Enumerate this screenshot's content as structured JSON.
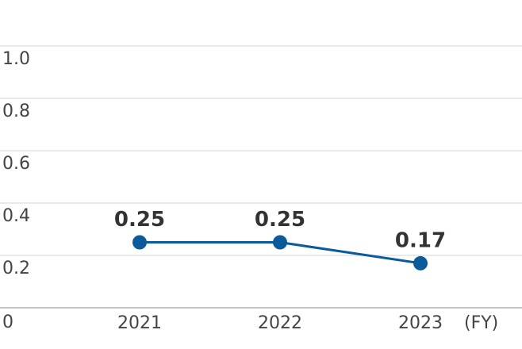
{
  "chart_data": {
    "type": "line",
    "categories": [
      "2021",
      "2022",
      "2023"
    ],
    "series": [
      {
        "color": "#0b5a9b",
        "values": [
          0.25,
          0.25,
          0.17
        ]
      }
    ],
    "x_label": "(FY)",
    "ylim": [
      0,
      1
    ],
    "yticks": [
      0,
      0.2,
      0.4,
      0.6,
      0.8,
      {
        "value": 1,
        "label": "1.0"
      }
    ],
    "grid": true
  }
}
